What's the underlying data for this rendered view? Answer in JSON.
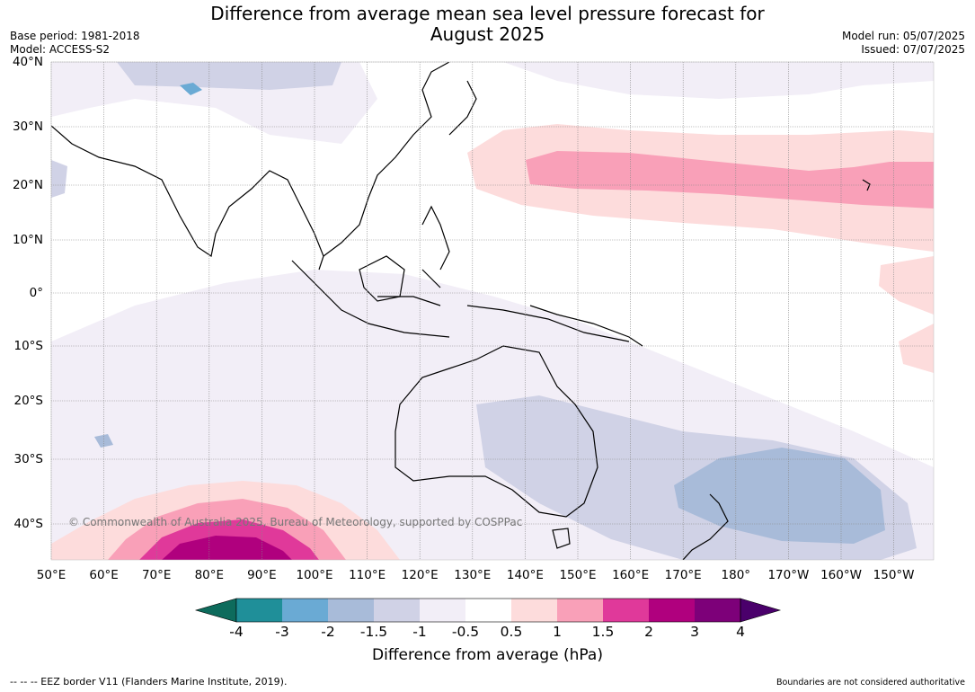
{
  "header": {
    "title_line1": "Difference from average mean sea level pressure forecast for",
    "title_line2": "August 2025",
    "base_period": "Base period: 1981-2018",
    "model": "Model: ACCESS-S2",
    "model_run": "Model run: 05/07/2025",
    "issued": "Issued: 07/07/2025"
  },
  "map": {
    "lat_labels": [
      "40°N",
      "30°N",
      "20°N",
      "10°N",
      "0°",
      "10°S",
      "20°S",
      "30°S",
      "40°S"
    ],
    "lon_labels": [
      "50°E",
      "60°E",
      "70°E",
      "80°E",
      "90°E",
      "100°E",
      "110°E",
      "120°E",
      "130°E",
      "140°E",
      "150°E",
      "160°E",
      "170°E",
      "180°",
      "170°W",
      "160°W",
      "150°W"
    ],
    "copyright": "© Commonwealth of Australia 2025, Bureau of Meteorology, supported by COSPPac",
    "land_outline_color": "#000000",
    "grid_color": "#888888"
  },
  "colorbar": {
    "tick_labels": [
      "-4",
      "-3",
      "-2",
      "-1.5",
      "-1",
      "-0.5",
      "0.5",
      "1",
      "1.5",
      "2",
      "3",
      "4"
    ],
    "colors": [
      "#0d6b5c",
      "#1f8f99",
      "#6aaad4",
      "#a8bbd9",
      "#d0d2e6",
      "#f2eef7",
      "#ffffff",
      "#fddcdc",
      "#f9a0b8",
      "#e0399a",
      "#b0007e",
      "#7d0079",
      "#4a006b"
    ],
    "label": "Difference from average (hPa)"
  },
  "footer": {
    "eez_note": "--  --  -- EEZ border V11 (Flanders Marine Institute, 2019).",
    "disclaimer": "Boundaries are not considered authoritative"
  }
}
